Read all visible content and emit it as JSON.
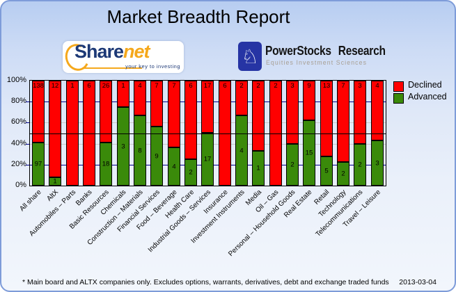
{
  "header": {
    "title": "Market Breadth Report"
  },
  "logos": {
    "sharenet": {
      "wordmark_share": "Share",
      "wordmark_net": "net",
      "tagline": "your key to investing",
      "navy": "#1D3976",
      "orange": "#F5A81C"
    },
    "powerstocks": {
      "name": "PowerStocks Research",
      "subtitle": "Equities Investment Sciences",
      "knight_glyph": "♘",
      "badge_color": "#2634A4"
    }
  },
  "chart_data": {
    "type": "bar",
    "stacked": true,
    "units": "percent_of_category_total",
    "categories": [
      "All share",
      "AltX",
      "Automobiles – Parts",
      "Banks",
      "Basic Resources",
      "Chemicals",
      "Construction – Materials",
      "Financial Services",
      "Food – Beverage",
      "Health Care",
      "Industrial Goods – Services",
      "Insurance",
      "Investment Instruments",
      "Media",
      "Oil – Gas",
      "Personal – Household Goods",
      "Real Estate",
      "Retail",
      "Technology",
      "Telecommunications",
      "Travel – Leisure"
    ],
    "series": [
      {
        "name": "Declined",
        "color": "#FF0000",
        "values": [
          138,
          12,
          1,
          6,
          26,
          1,
          4,
          7,
          7,
          6,
          17,
          6,
          2,
          2,
          2,
          3,
          9,
          13,
          7,
          3,
          4
        ]
      },
      {
        "name": "Advanced",
        "color": "#3A8A0A",
        "values": [
          97,
          1,
          0,
          0,
          18,
          3,
          8,
          9,
          4,
          2,
          17,
          0,
          4,
          1,
          0,
          2,
          15,
          5,
          2,
          2,
          3
        ]
      }
    ],
    "y_axis": {
      "tick_labels": [
        "100%",
        "80%",
        "60%",
        "40%",
        "20%",
        "0%"
      ],
      "min": 0,
      "max": 100
    },
    "gridlines": [
      {
        "value": 80,
        "color": "#00008B"
      },
      {
        "value": 60,
        "color": "#C9C9C9"
      },
      {
        "value": 40,
        "color": "#C9C9C9"
      },
      {
        "value": 20,
        "color": "#00008B"
      }
    ],
    "reference_line": {
      "value": 50,
      "color": "#000000"
    },
    "legend": {
      "position": "right",
      "entries": [
        "Declined",
        "Advanced"
      ]
    }
  },
  "footer": {
    "note": "* Main board and ALTX companies only. Excludes options, warrants, derivatives, debt and exchange traded funds",
    "date": "2013-03-04"
  }
}
